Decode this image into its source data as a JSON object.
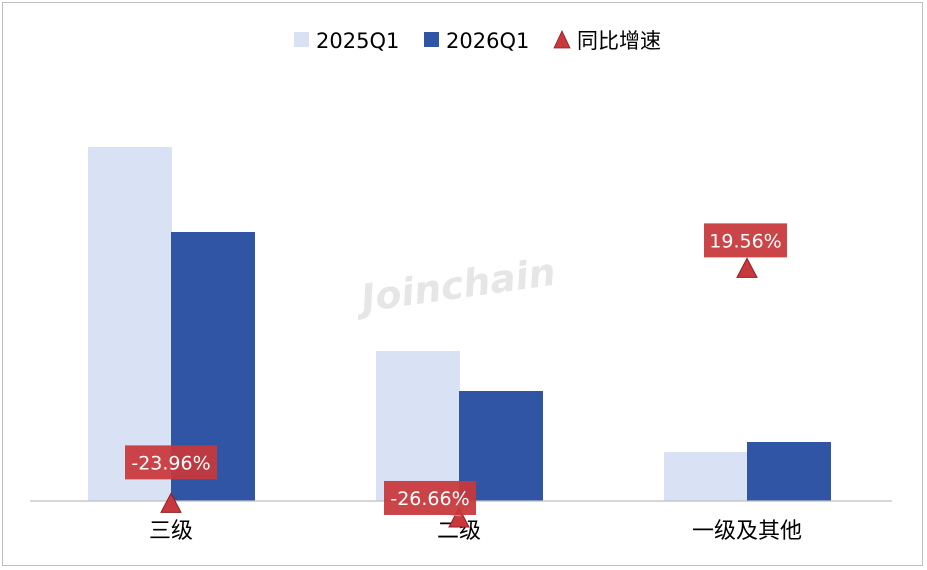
{
  "chart_data": {
    "type": "bar",
    "categories": [
      "三级",
      "二级",
      "一级及其他"
    ],
    "series": [
      {
        "name": "2025Q1",
        "values": [
          354,
          150,
          49
        ],
        "color": "#d9e1f4"
      },
      {
        "name": "2026Q1",
        "values": [
          269,
          110,
          59
        ],
        "color": "#2f55a4"
      }
    ],
    "overlay": {
      "name": "同比增速",
      "marker": "triangle",
      "color": "#c8383d",
      "values": [
        -23.96,
        -26.66,
        19.56
      ],
      "labels": [
        "-23.96%",
        "-26.66%",
        "19.56%"
      ]
    },
    "ylim": [
      0,
      380
    ],
    "grid": false,
    "legend_position": "top",
    "watermark": "Joinchain"
  }
}
